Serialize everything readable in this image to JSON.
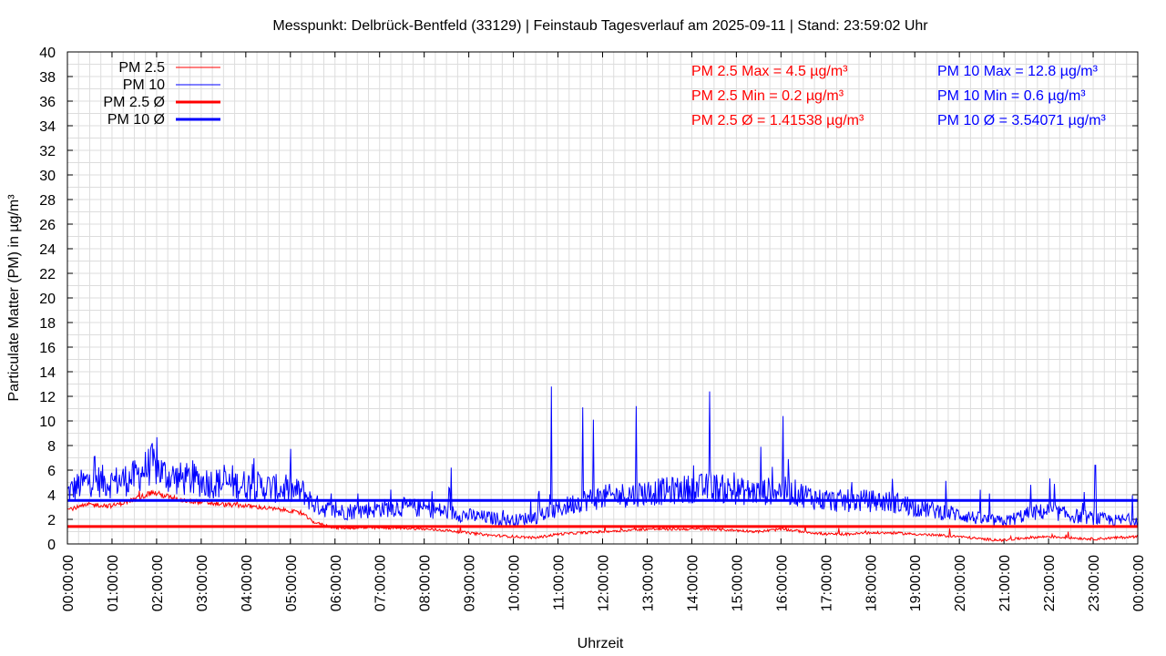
{
  "chart_data": {
    "type": "line",
    "title": "Messpunkt: Delbrück-Bentfeld (33129) | Feinstaub Tagesverlauf am 2025-09-11 | Stand: 23:59:02 Uhr",
    "xlabel": "Uhrzeit",
    "ylabel": "Particulate Matter (PM) in µg/m³",
    "x_range": [
      "00:00:00",
      "24:00:00"
    ],
    "ylim": [
      0,
      40
    ],
    "y_ticks": [
      0,
      2,
      4,
      6,
      8,
      10,
      12,
      14,
      16,
      18,
      20,
      22,
      24,
      26,
      28,
      30,
      32,
      34,
      36,
      38,
      40
    ],
    "x_tick_labels": [
      "00:00:00",
      "01:00:00",
      "02:00:00",
      "03:00:00",
      "04:00:00",
      "05:00:00",
      "06:00:00",
      "07:00:00",
      "08:00:00",
      "09:00:00",
      "10:00:00",
      "11:00:00",
      "12:00:00",
      "13:00:00",
      "14:00:00",
      "15:00:00",
      "16:00:00",
      "17:00:00",
      "18:00:00",
      "19:00:00",
      "20:00:00",
      "21:00:00",
      "22:00:00",
      "23:00:00",
      "00:00:00"
    ],
    "grid": true,
    "legend_position": "top-left",
    "colors": {
      "pm25": "#ff0000",
      "pm10": "#0000ff"
    },
    "series": [
      {
        "name": "PM 2.5",
        "color": "#ff0000",
        "x_hours": [
          0,
          0.5,
          1,
          1.5,
          1.9,
          2.2,
          2.5,
          3,
          3.5,
          4,
          4.5,
          5,
          5.3,
          5.5,
          6,
          6.5,
          7,
          7.5,
          8,
          8.5,
          9,
          9.5,
          10,
          10.5,
          11,
          11.5,
          12,
          12.5,
          13,
          13.5,
          14,
          14.5,
          15,
          15.5,
          16,
          16.5,
          17,
          17.5,
          18,
          18.5,
          19,
          19.5,
          20,
          20.5,
          21,
          21.5,
          22,
          22.5,
          23,
          23.5,
          24
        ],
        "values": [
          2.8,
          3.2,
          3.1,
          3.6,
          4.2,
          3.9,
          3.6,
          3.4,
          3.2,
          3.1,
          2.9,
          2.7,
          2.4,
          1.8,
          1.3,
          1.3,
          1.3,
          1.3,
          1.2,
          1.1,
          0.9,
          0.7,
          0.6,
          0.5,
          0.8,
          0.9,
          1.0,
          1.1,
          1.2,
          1.2,
          1.2,
          1.2,
          1.1,
          1.0,
          1.2,
          1.0,
          0.8,
          0.8,
          0.9,
          0.9,
          0.8,
          0.7,
          0.6,
          0.4,
          0.3,
          0.5,
          0.6,
          0.5,
          0.4,
          0.5,
          0.6
        ],
        "max": 4.5,
        "min": 0.2,
        "mean": 1.41538
      },
      {
        "name": "PM 10",
        "color": "#0000ff",
        "x_hours": [
          0,
          0.5,
          1,
          1.5,
          1.9,
          2.2,
          2.5,
          3,
          3.5,
          4,
          4.5,
          5,
          5.3,
          5.5,
          6,
          6.5,
          7,
          7.5,
          8,
          8.5,
          9,
          9.5,
          10,
          10.5,
          11,
          11.5,
          12,
          12.5,
          13,
          13.5,
          14,
          14.5,
          15,
          15.5,
          16,
          16.5,
          17,
          17.5,
          18,
          18.5,
          19,
          19.5,
          20,
          20.5,
          21,
          21.5,
          22,
          22.5,
          23,
          23.5,
          24
        ],
        "values": [
          4.2,
          5.2,
          5.0,
          5.4,
          6.5,
          5.6,
          5.3,
          5.1,
          4.9,
          4.8,
          4.6,
          4.3,
          4.2,
          3.3,
          2.6,
          2.7,
          2.9,
          3.0,
          2.9,
          2.6,
          2.3,
          2.1,
          1.9,
          2.2,
          2.8,
          3.5,
          3.8,
          4.0,
          4.2,
          4.3,
          4.5,
          4.6,
          4.3,
          4.2,
          4.4,
          4.0,
          3.5,
          3.5,
          3.5,
          3.4,
          3.0,
          2.7,
          2.4,
          2.0,
          1.8,
          2.4,
          2.7,
          2.3,
          2.1,
          1.9,
          2.0
        ],
        "spikes": [
          {
            "x_hour": 0.6,
            "value": 7.1
          },
          {
            "x_hour": 1.95,
            "value": 7.0
          },
          {
            "x_hour": 3.7,
            "value": 6.4
          },
          {
            "x_hour": 4.15,
            "value": 6.5
          },
          {
            "x_hour": 8.6,
            "value": 6.2
          },
          {
            "x_hour": 10.85,
            "value": 12.8
          },
          {
            "x_hour": 11.55,
            "value": 11.1
          },
          {
            "x_hour": 11.8,
            "value": 10.1
          },
          {
            "x_hour": 12.75,
            "value": 11.2
          },
          {
            "x_hour": 14.4,
            "value": 12.4
          },
          {
            "x_hour": 15.55,
            "value": 7.9
          },
          {
            "x_hour": 16.05,
            "value": 10.4
          },
          {
            "x_hour": 18.5,
            "value": 5.3
          },
          {
            "x_hour": 21.6,
            "value": 4.8
          },
          {
            "x_hour": 23.05,
            "value": 6.4
          }
        ],
        "max": 12.8,
        "min": 0.6,
        "mean": 3.54071
      },
      {
        "name": "PM 2.5 Ø",
        "color": "#ff0000",
        "value": 1.41538
      },
      {
        "name": "PM 10 Ø",
        "color": "#0000ff",
        "value": 3.54071
      }
    ],
    "annotations": {
      "pm25_max": "PM 2.5 Max = 4.5 µg/m³",
      "pm25_min": "PM 2.5 Min = 0.2 µg/m³",
      "pm25_mean": "PM 2.5 Ø = 1.41538 µg/m³",
      "pm10_max": "PM 10 Max = 12.8 µg/m³",
      "pm10_min": "PM 10 Min = 0.6 µg/m³",
      "pm10_mean": "PM 10 Ø = 3.54071 µg/m³"
    }
  }
}
